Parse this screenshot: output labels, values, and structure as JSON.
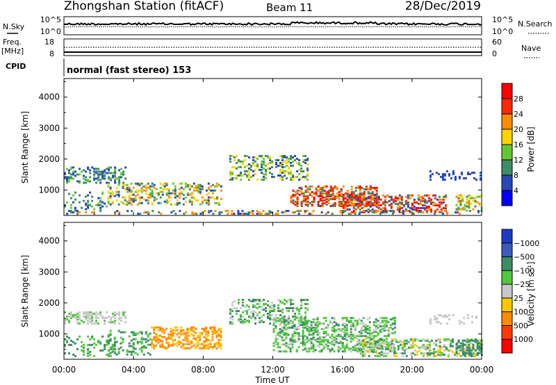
{
  "header": {
    "title": "Zhongshan Station (fitACF)",
    "beam": "Beam 11",
    "date": "28/Dec/2019",
    "mode_label": "normal (fast stereo) 153"
  },
  "strips": {
    "nsky_label": "N.Sky",
    "nsky_ticks": [
      "10^5",
      "10^0"
    ],
    "nsearch_label": "N.Search",
    "nsearch_ticks": [
      "10^5",
      "10^0"
    ],
    "freq_label_1": "Freq.",
    "freq_label_2": "[MHz]",
    "freq_ticks": [
      "18",
      "8"
    ],
    "nave_label": "Nave",
    "nave_ticks": [
      "60",
      "0"
    ],
    "cpid_label": "CPID"
  },
  "chart_data": [
    {
      "type": "heatmap",
      "name": "power",
      "ylabel": "Slant Range [km]",
      "y_ticks": [
        "1000",
        "2000",
        "3000",
        "4000"
      ],
      "ylim": [
        180,
        4600
      ],
      "colorbar_label": "Power [dB]",
      "colorbar_ticks": [
        "4",
        "8",
        "12",
        "16",
        "20",
        "24",
        "28"
      ],
      "colors": [
        "#0000ff",
        "#2848b8",
        "#3c8c64",
        "#64c832",
        "#ffd400",
        "#ff8c00",
        "#ff2a00",
        "#ff0000"
      ]
    },
    {
      "type": "heatmap",
      "name": "velocity",
      "ylabel": "Slant Range [km]",
      "y_ticks": [
        "1000",
        "2000",
        "3000",
        "4000"
      ],
      "ylim": [
        180,
        4600
      ],
      "colorbar_label": "Velocity [m s⁻¹]",
      "colorbar_ticks": [
        "1000",
        "500",
        "100",
        "25",
        "−25",
        "−100",
        "−500",
        "−1000"
      ],
      "colors": [
        "#1c3cc8",
        "#3c5cb8",
        "#3c8c64",
        "#50c83c",
        "#c8c8c8",
        "#ffc800",
        "#ff8c00",
        "#ff3c00",
        "#ff0000"
      ]
    }
  ],
  "x_axis": {
    "label": "Time UT",
    "ticks": [
      "00:00",
      "04:00",
      "08:00",
      "12:00",
      "16:00",
      "20:00",
      "00:00"
    ]
  }
}
